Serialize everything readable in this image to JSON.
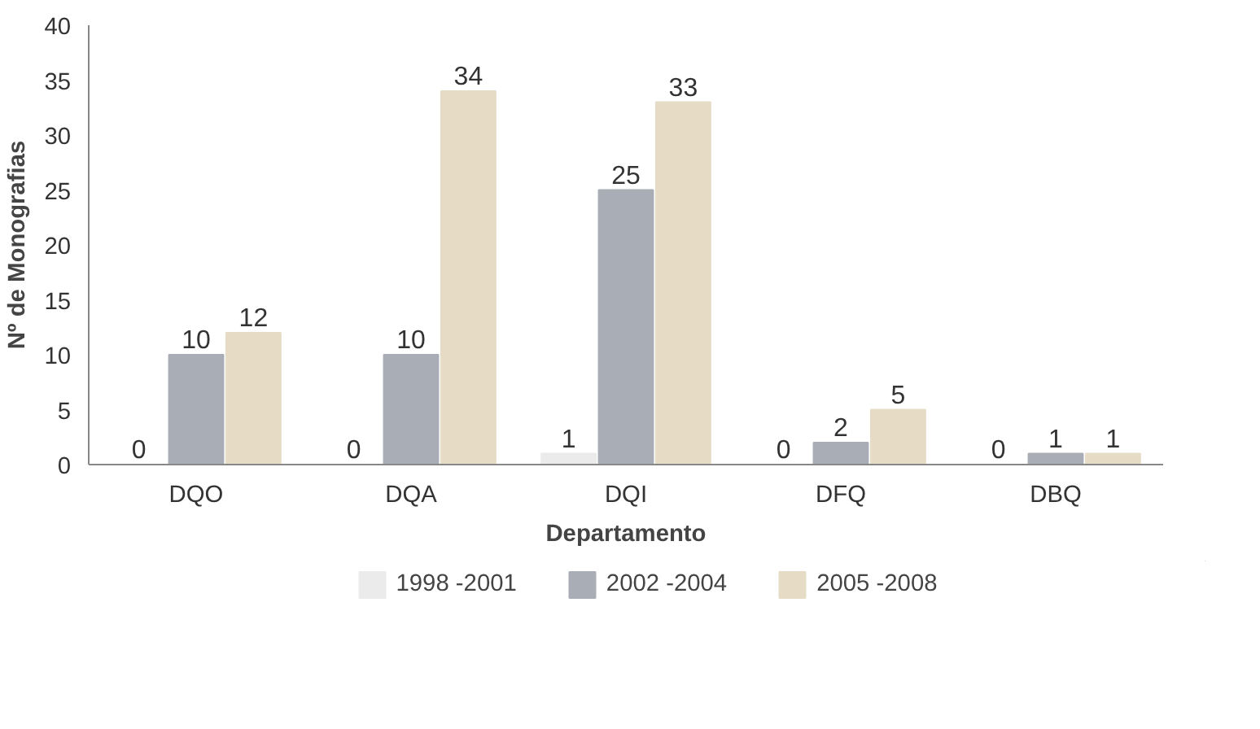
{
  "chart_data": {
    "type": "bar",
    "xlabel": "Departamento",
    "ylabel": "Nº de Monografias",
    "categories": [
      "DQO",
      "DQA",
      "DQI",
      "DFQ",
      "DBQ"
    ],
    "series": [
      {
        "name": "1998 -2001",
        "color": "#ebebeb",
        "values": [
          0,
          0,
          1,
          0,
          0
        ]
      },
      {
        "name": "2002 -2004",
        "color": "#a9adb5",
        "values": [
          10,
          10,
          25,
          2,
          1
        ]
      },
      {
        "name": "2005 -2008",
        "color": "#e6dcc6",
        "values": [
          12,
          34,
          33,
          5,
          1
        ]
      }
    ],
    "ylim": [
      0,
      40
    ],
    "yticks": [
      0,
      5,
      10,
      15,
      20,
      25,
      30,
      35,
      40
    ],
    "grid": false,
    "legend": "bottom",
    "data_labels": true
  }
}
